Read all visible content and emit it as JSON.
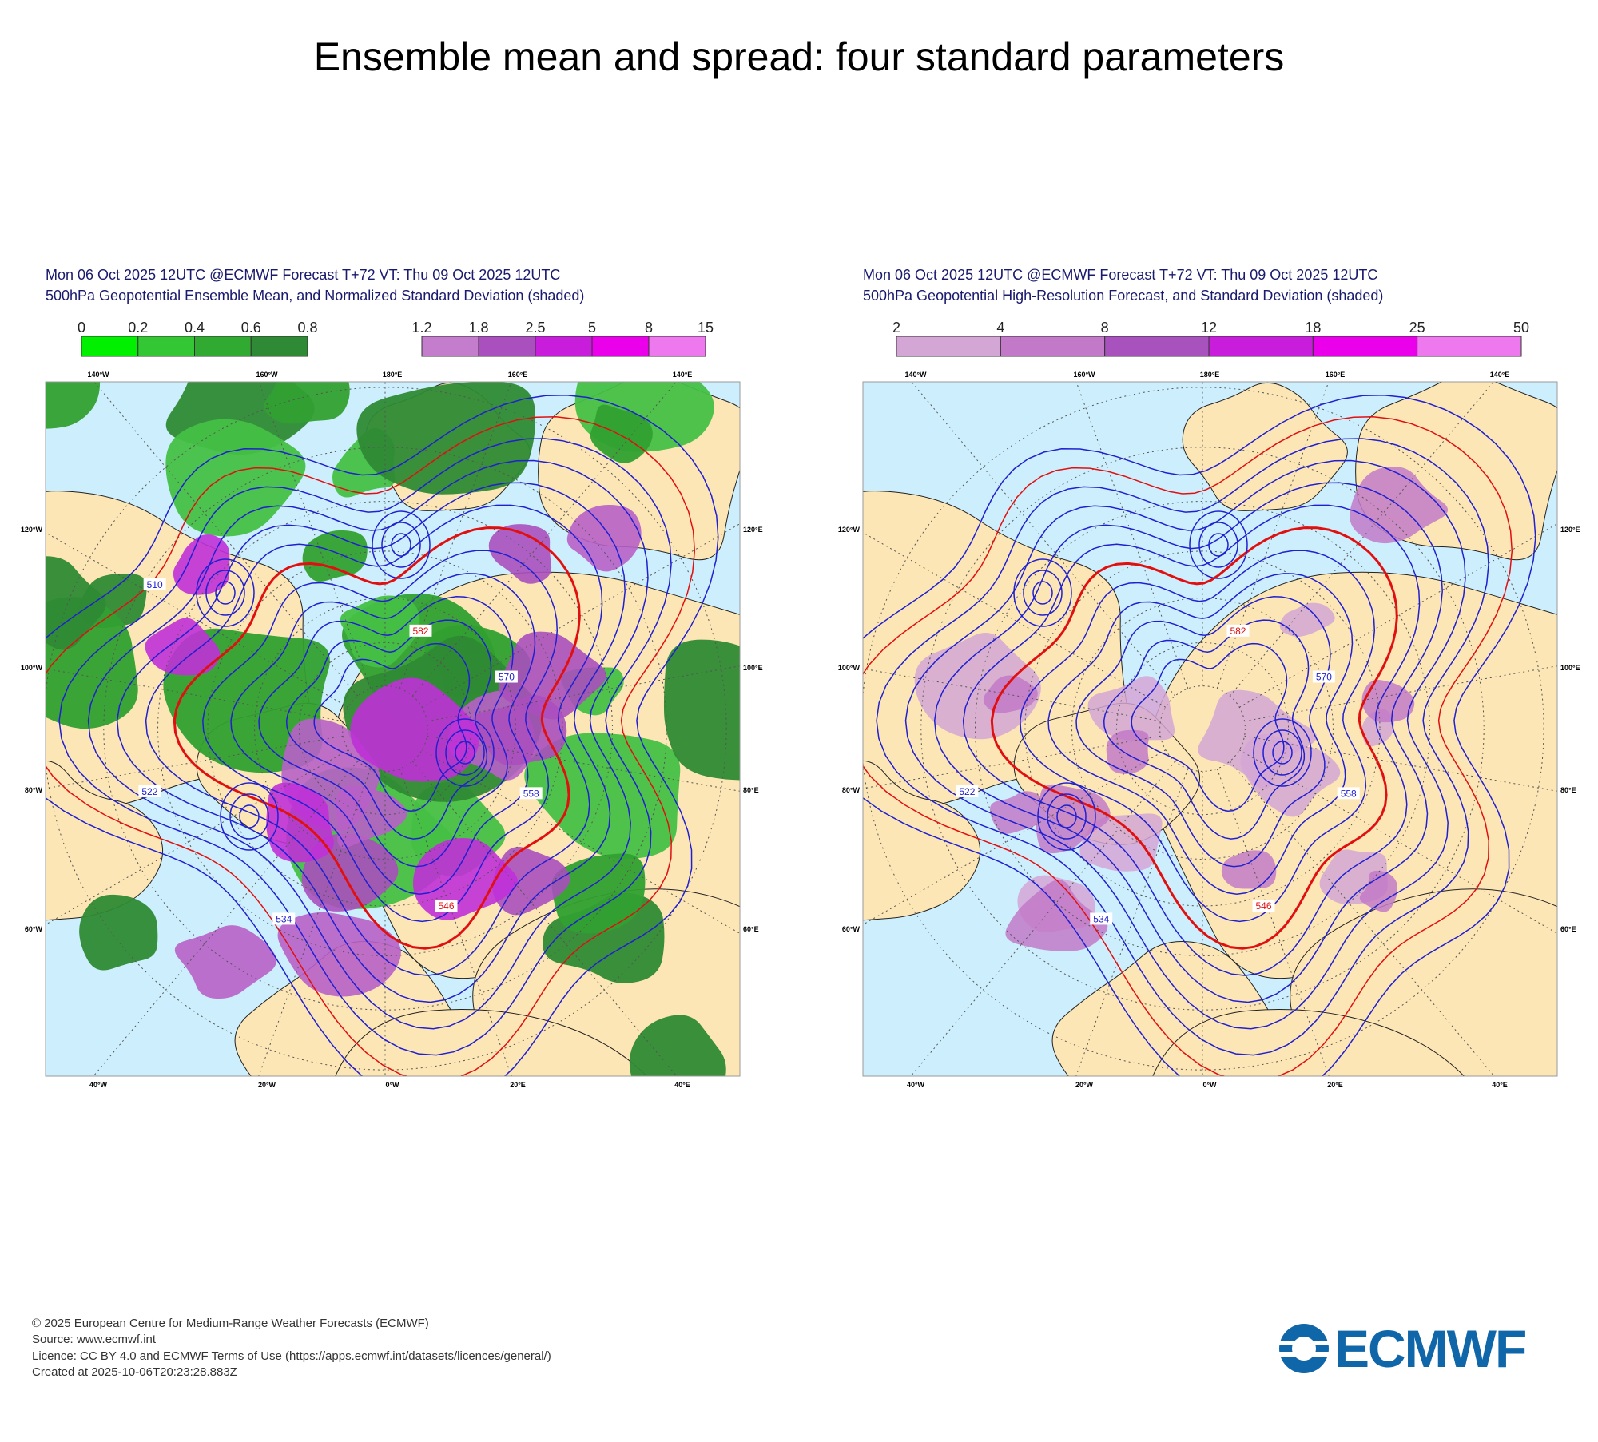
{
  "title": "Ensemble mean and spread: four standard parameters",
  "panels": [
    {
      "header": [
        "Mon 06 Oct 2025 12UTC @ECMWF Forecast T+72 VT: Thu 09 Oct 2025 12UTC",
        "500hPa Geopotential Ensemble Mean, and Normalized Standard Deviation (shaded)"
      ],
      "colorbars": [
        {
          "ticks": [
            "0",
            "0.2",
            "0.4",
            "0.6",
            "0.8"
          ],
          "colors": [
            "#00f000",
            "#33c833",
            "#30aa30",
            "#2e8a34"
          ]
        },
        {
          "ticks": [
            "1.2",
            "1.8",
            "2.5",
            "5",
            "8",
            "15"
          ],
          "colors": [
            "#c47ccc",
            "#aa4fbe",
            "#c81edc",
            "#ea00ea",
            "#ee78ee"
          ]
        }
      ],
      "border_labels": {
        "top": [
          "140°W",
          "160°W",
          "180°E",
          "160°E",
          "140°E"
        ],
        "left": [
          "120°W",
          "100°W",
          "80°W",
          "60°W"
        ],
        "right": [
          "120°E",
          "100°E",
          "80°E",
          "60°E"
        ],
        "bottom": [
          "40°W",
          "20°W",
          "0°W",
          "20°E",
          "40°E"
        ]
      },
      "contour_labels": [
        "582",
        "570",
        "558",
        "546",
        "534",
        "522",
        "510"
      ]
    },
    {
      "header": [
        "Mon 06 Oct 2025 12UTC @ECMWF Forecast T+72 VT: Thu 09 Oct 2025 12UTC",
        "500hPa Geopotential High-Resolution Forecast, and Standard Deviation (shaded)"
      ],
      "colorbars": [
        {
          "ticks": [
            "2",
            "4",
            "8",
            "12",
            "18",
            "25",
            "50"
          ],
          "colors": [
            "#d4a6d6",
            "#c27ac8",
            "#a752bd",
            "#c81edc",
            "#ea00ea",
            "#ee78ee"
          ]
        }
      ],
      "border_labels": {
        "top": [
          "140°W",
          "160°W",
          "180°E",
          "160°E",
          "140°E"
        ],
        "left": [
          "120°W",
          "100°W",
          "80°W",
          "60°W"
        ],
        "right": [
          "120°E",
          "100°E",
          "80°E",
          "60°E"
        ],
        "bottom": [
          "40°W",
          "20°W",
          "0°W",
          "20°E",
          "40°E"
        ]
      },
      "contour_labels": [
        "582",
        "570",
        "558",
        "546",
        "534",
        "522"
      ]
    }
  ],
  "footer": [
    "© 2025 European Centre for Medium-Range Weather Forecasts (ECMWF)",
    "Source: www.ecmwf.int",
    "Licence: CC BY 4.0 and ECMWF Terms of Use (https://apps.ecmwf.int/datasets/licences/general/)",
    "Created at 2025-10-06T20:23:28.883Z"
  ],
  "logo": "ECMWF"
}
